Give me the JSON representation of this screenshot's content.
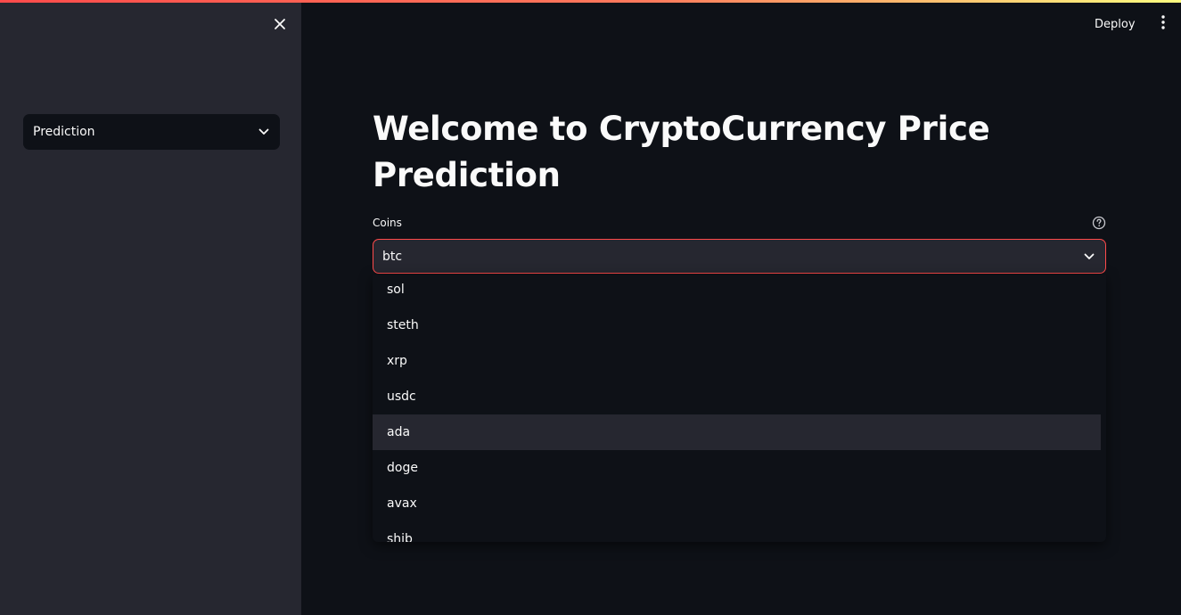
{
  "sidebar": {
    "nav_select": {
      "value": "Prediction"
    }
  },
  "header": {
    "deploy_label": "Deploy"
  },
  "main": {
    "title": "Welcome to CryptoCurrency Price Prediction",
    "coins_field": {
      "label": "Coins",
      "value": "btc",
      "options": [
        "sol",
        "steth",
        "xrp",
        "usdc",
        "ada",
        "doge",
        "avax",
        "shib"
      ],
      "highlighted_option": "ada"
    }
  },
  "colors": {
    "background": "#0e1117",
    "sidebar": "#262730",
    "accent": "#ff4b4b",
    "text": "#fafafa"
  }
}
